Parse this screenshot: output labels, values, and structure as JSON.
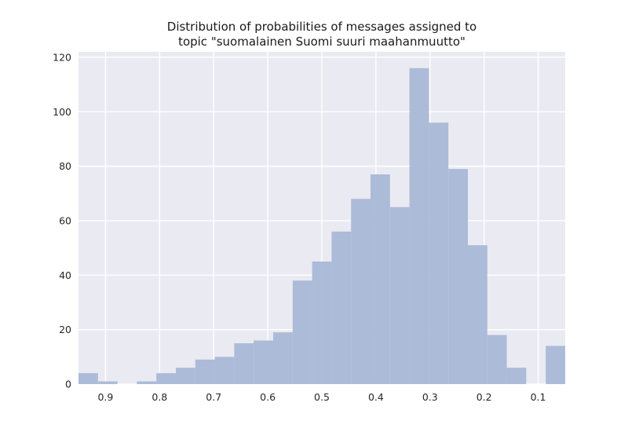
{
  "chart_data": {
    "type": "bar",
    "title": [
      "Distribution of probabilities of messages assigned to",
      "topic \"suomalainen Suomi suuri maahanmuutto\""
    ],
    "xlabel": "",
    "ylabel": "",
    "x_axis_inverted": true,
    "xlim": [
      0.95,
      0.05
    ],
    "ylim": [
      0,
      122
    ],
    "grid": true,
    "legend": "none",
    "xticks": [
      0.9,
      0.8,
      0.7,
      0.6,
      0.5,
      0.4,
      0.3,
      0.2,
      0.1
    ],
    "xtick_labels": [
      "0.9",
      "0.8",
      "0.7",
      "0.6",
      "0.5",
      "0.4",
      "0.3",
      "0.2",
      "0.1"
    ],
    "yticks": [
      0,
      20,
      40,
      60,
      80,
      100,
      120
    ],
    "ytick_labels": [
      "0",
      "20",
      "40",
      "60",
      "80",
      "100",
      "120"
    ],
    "bin_edges": [
      0.95,
      0.914,
      0.878,
      0.842,
      0.806,
      0.77,
      0.734,
      0.698,
      0.662,
      0.626,
      0.59,
      0.554,
      0.518,
      0.482,
      0.446,
      0.41,
      0.374,
      0.338,
      0.302,
      0.266,
      0.23,
      0.194,
      0.158,
      0.122,
      0.086,
      0.05
    ],
    "counts": [
      4,
      1,
      0,
      1,
      4,
      6,
      9,
      10,
      15,
      16,
      19,
      38,
      45,
      56,
      68,
      77,
      65,
      116,
      96,
      79,
      51,
      18,
      6,
      0,
      14
    ],
    "colors": {
      "bar": "#a9b8d6",
      "background": "#eaeaf2",
      "grid": "#ffffff"
    }
  }
}
